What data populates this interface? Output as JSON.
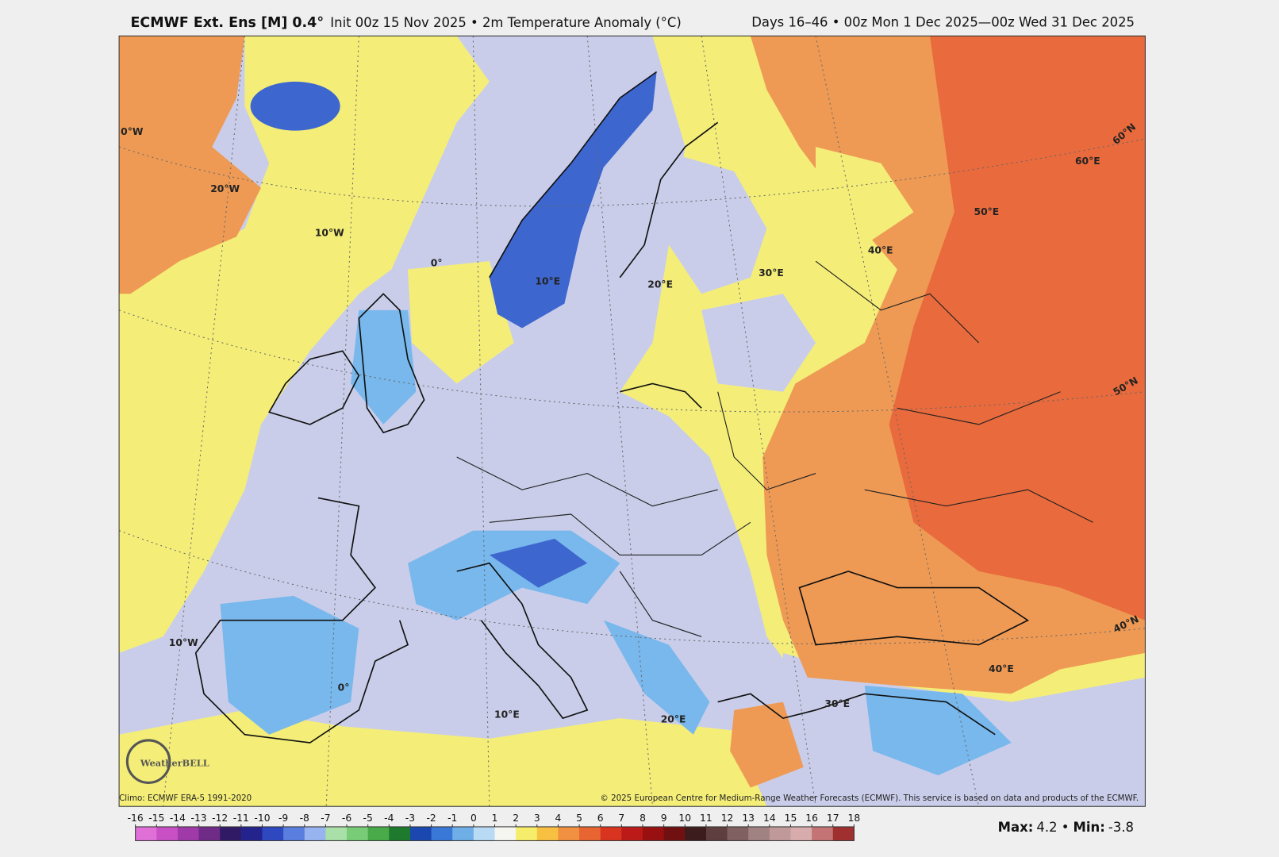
{
  "header": {
    "title_bold": "ECMWF Ext. Ens [M] 0.4°",
    "title_rest": "Init 00z 15 Nov 2025 • 2m Temperature Anomaly (°C)",
    "valid": "Days 16–46 • 00z Mon 1 Dec 2025—00z Wed 31 Dec 2025"
  },
  "map": {
    "grid_labels": [
      "0°W",
      "20°W",
      "10°W",
      "0°",
      "10°E",
      "20°E",
      "30°E",
      "40°E",
      "50°E",
      "60°E",
      "60°N",
      "50°N",
      "40°N",
      "10°W",
      "0°",
      "10°E",
      "20°E",
      "30°E",
      "40°E"
    ],
    "logo": "WeatherBELL"
  },
  "footer": {
    "climo": "Climo: ECMWF ERA-5 1991-2020",
    "copyright": "© 2025 European Centre for Medium-Range Weather Forecasts (ECMWF). This service is based on data and products of the ECMWF."
  },
  "colorbar": {
    "ticks": [
      -16,
      -15,
      -14,
      -13,
      -12,
      -11,
      -10,
      -9,
      -8,
      -7,
      -6,
      -5,
      -4,
      -3,
      -2,
      -1,
      0,
      1,
      2,
      3,
      4,
      5,
      6,
      7,
      8,
      9,
      10,
      11,
      12,
      13,
      14,
      15,
      16,
      17,
      18
    ],
    "colors": [
      "#e070d8",
      "#c850c4",
      "#a03aa8",
      "#702a88",
      "#301a66",
      "#24238e",
      "#2e48c0",
      "#5a7ee0",
      "#98b4f0",
      "#a8e0a8",
      "#78cc78",
      "#48aa48",
      "#1e7a2c",
      "#1a48b0",
      "#3a78d8",
      "#70aee8",
      "#b8daf4",
      "#f6f6f0",
      "#f6ee6a",
      "#f8c040",
      "#f09040",
      "#e86430",
      "#d83420",
      "#bc1a18",
      "#981010",
      "#701010",
      "#3c1c1c",
      "#5e3e3e",
      "#806060",
      "#a08282",
      "#c09a9a",
      "#d8acac",
      "#c47474",
      "#a03030"
    ]
  },
  "stats": {
    "max_label": "Max:",
    "max": 4.2,
    "separator": "•",
    "min_label": "Min:",
    "min": -3.8
  }
}
